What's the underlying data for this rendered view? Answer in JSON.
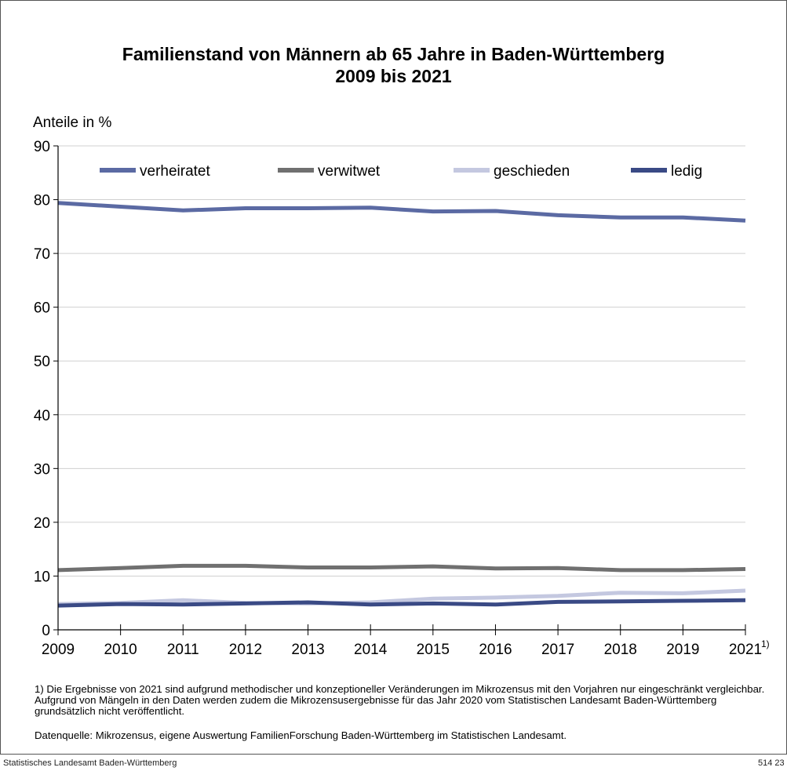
{
  "colors": {
    "verheiratet": "#5b6aa3",
    "verwitwet": "#707070",
    "geschieden": "#c4c8e0",
    "ledig": "#3a4a85",
    "grid": "#d0d0d0",
    "axis": "#000000"
  },
  "chart_data": {
    "type": "line",
    "title": "Familienstand von Männern ab 65 Jahre in Baden-Württemberg",
    "subtitle": "2009 bis 2021",
    "ylabel": "Anteile in %",
    "xlabel": "",
    "ylim": [
      0,
      90
    ],
    "yticks": [
      "0",
      "10",
      "20",
      "30",
      "40",
      "50",
      "60",
      "70",
      "80",
      "90"
    ],
    "x": [
      "2009",
      "2010",
      "2011",
      "2012",
      "2013",
      "2014",
      "2015",
      "2016",
      "2017",
      "2018",
      "2019",
      "2021"
    ],
    "last_x_footnote_marker": "1)",
    "grid": true,
    "legend_position": "top",
    "series": [
      {
        "name": "verheiratet",
        "color_key": "verheiratet",
        "values": [
          79.4,
          78.7,
          78.0,
          78.4,
          78.4,
          78.5,
          77.8,
          77.9,
          77.1,
          76.7,
          76.7,
          76.1
        ]
      },
      {
        "name": "verwitwet",
        "color_key": "verwitwet",
        "values": [
          11.1,
          11.5,
          11.9,
          11.9,
          11.6,
          11.6,
          11.8,
          11.4,
          11.5,
          11.1,
          11.1,
          11.3
        ]
      },
      {
        "name": "geschieden",
        "color_key": "geschieden",
        "values": [
          4.8,
          5.0,
          5.5,
          5.0,
          4.9,
          5.1,
          5.8,
          6.0,
          6.3,
          6.9,
          6.8,
          7.3
        ]
      },
      {
        "name": "ledig",
        "color_key": "ledig",
        "values": [
          4.5,
          4.8,
          4.7,
          4.9,
          5.1,
          4.7,
          4.9,
          4.7,
          5.2,
          5.3,
          5.4,
          5.5
        ]
      }
    ]
  },
  "footnote": "1) Die Ergebnisse von 2021 sind aufgrund methodischer und konzeptioneller Veränderungen im Mikrozensus mit den Vorjahren nur eingeschränkt vergleichbar. Aufgrund von Mängeln in den Daten werden zudem die Mikrozensusergebnisse für das Jahr 2020 vom Statistischen Landesamt Baden-Württemberg grundsätzlich nicht veröffentlicht.",
  "source": "Datenquelle: Mikrozensus, eigene Auswertung FamilienForschung Baden-Württemberg im Statistischen Landesamt.",
  "footer": {
    "publisher": "Statistisches Landesamt Baden-Württemberg",
    "code": "514 23"
  }
}
